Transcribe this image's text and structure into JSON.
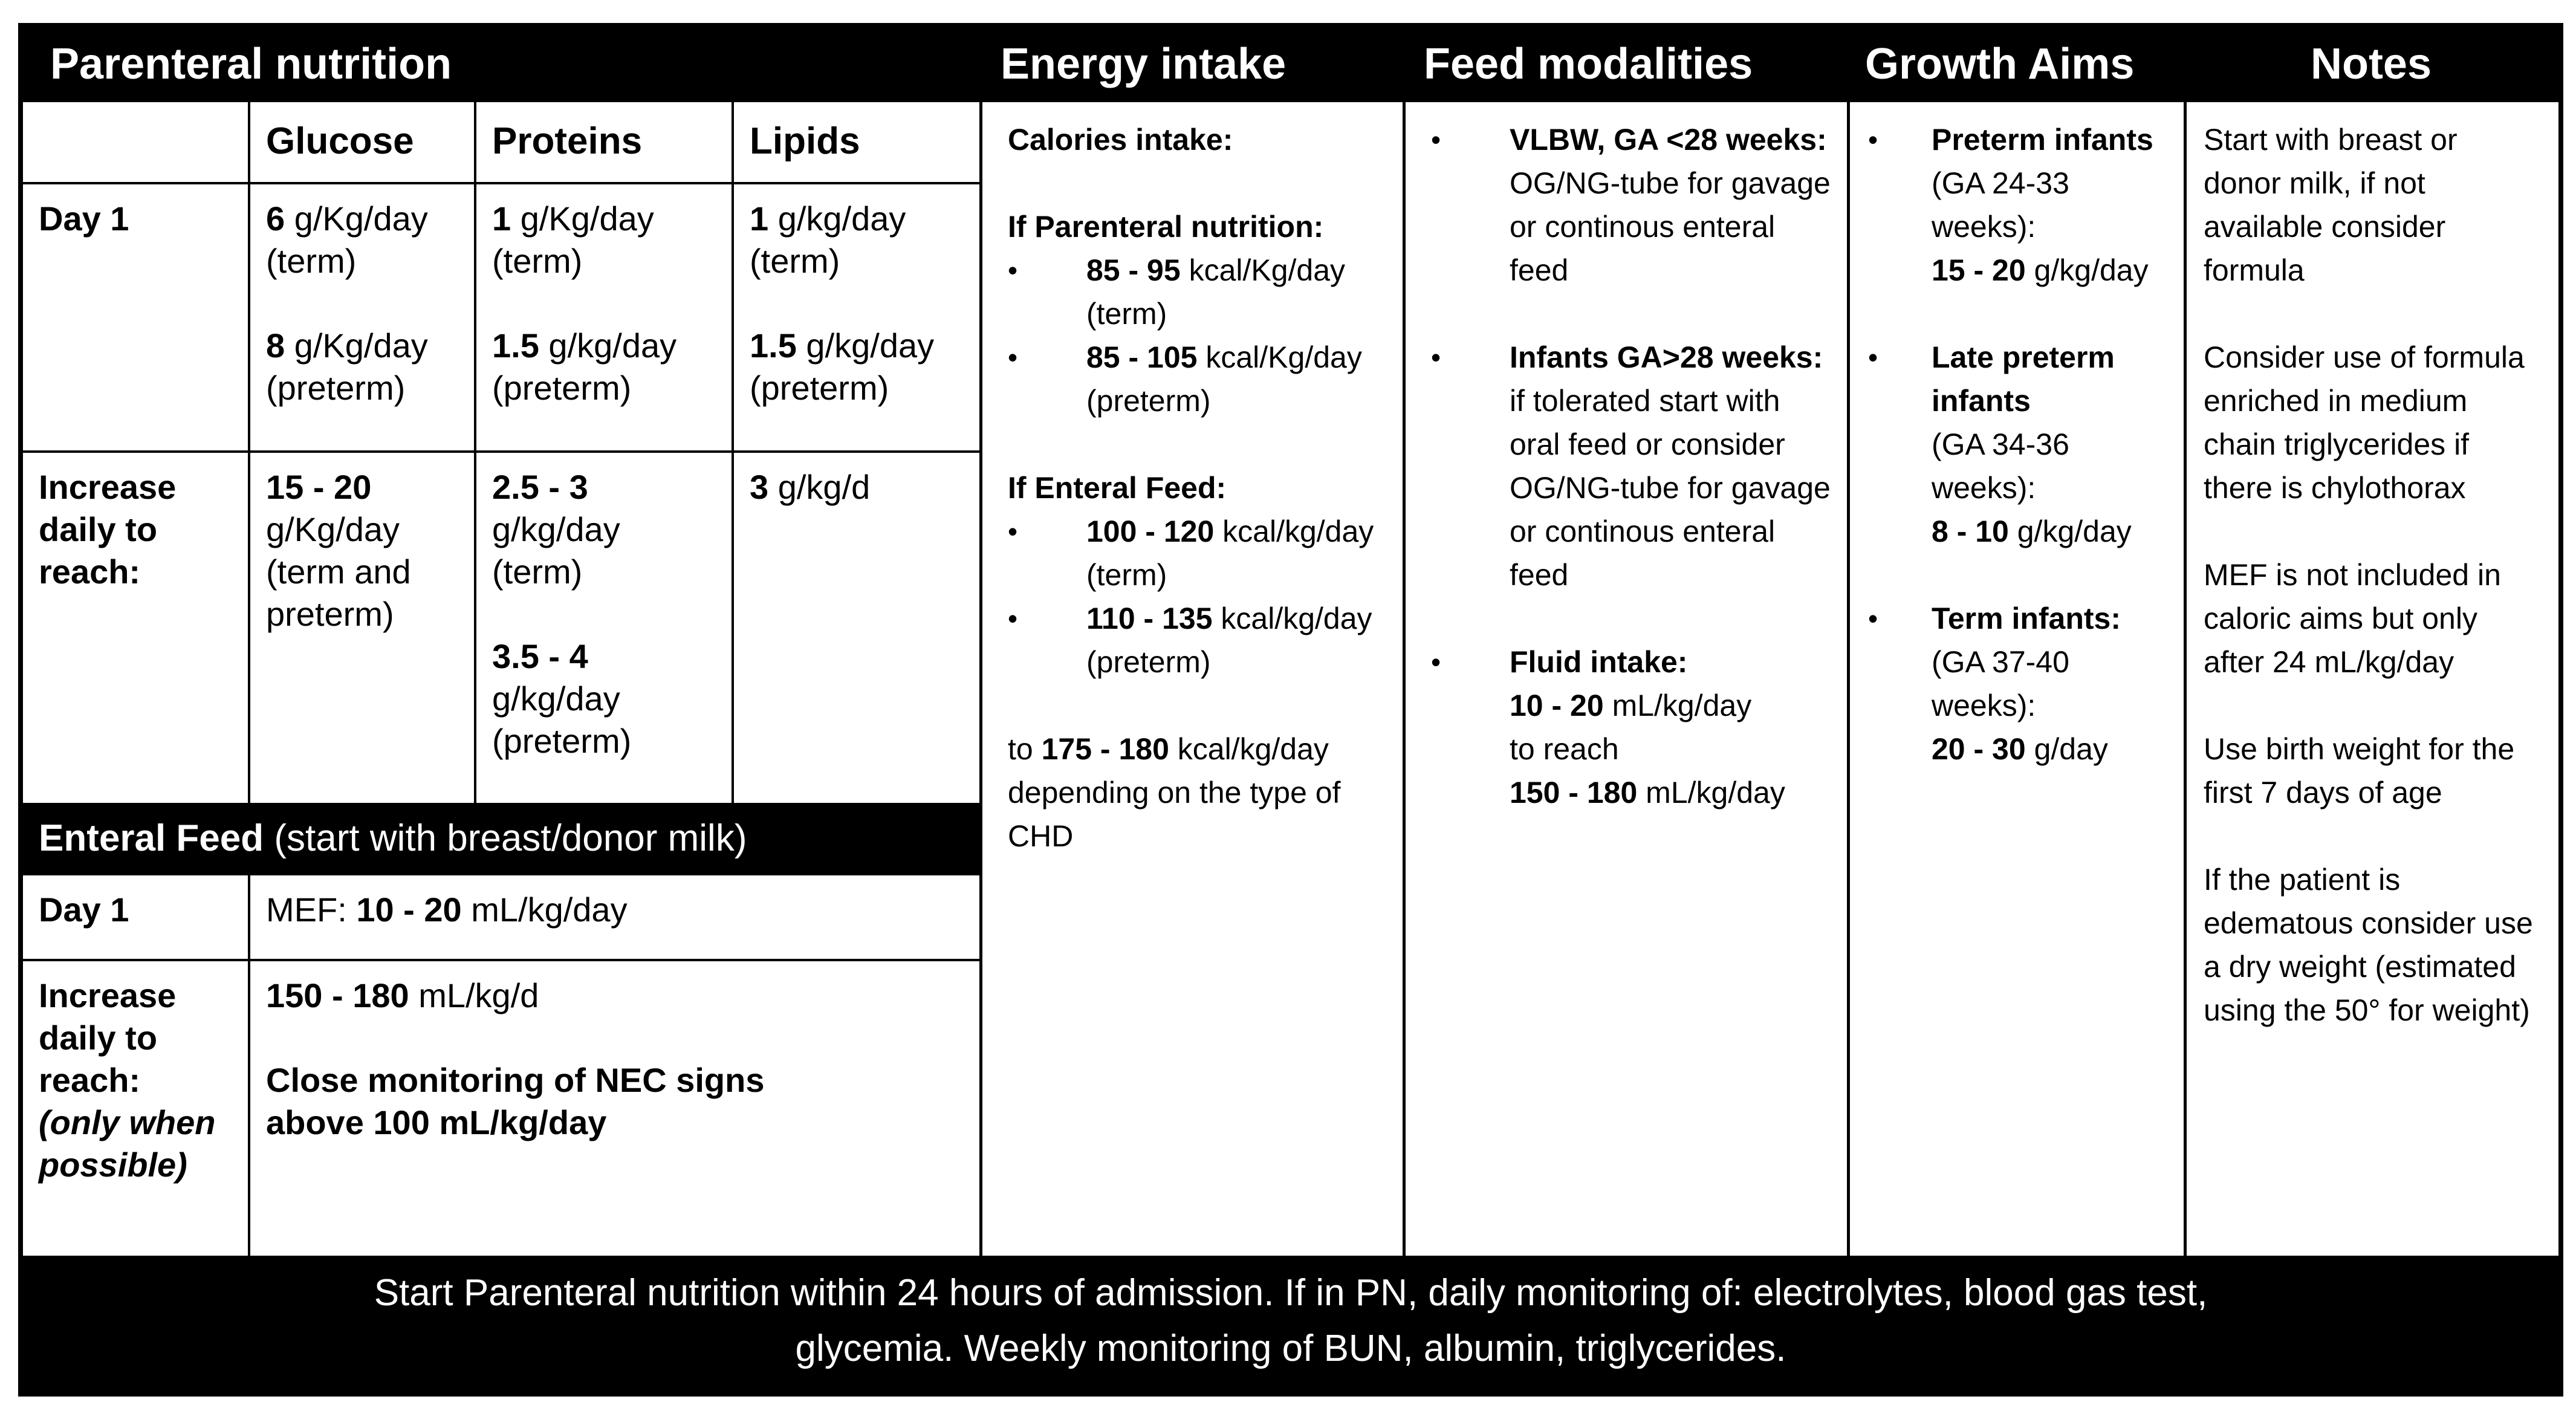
{
  "headers": {
    "parenteral": "Parenteral nutrition",
    "energy": "Energy intake",
    "feed": "Feed modalities",
    "growth": "Growth Aims",
    "notes": "Notes"
  },
  "parenteral": {
    "col_headers": [
      "Glucose",
      "Proteins",
      "Lipids"
    ],
    "rows": [
      {
        "label": "Day 1",
        "glucose": "**6** g/Kg/day\n(term)\n\n**8** g/Kg/day\n(preterm)",
        "proteins": "**1** g/Kg/day\n(term)\n\n**1.5** g/kg/day\n(preterm)",
        "lipids": "**1** g/kg/day\n(term)\n\n**1.5** g/kg/day\n(preterm)"
      },
      {
        "label": "Increase daily to reach:",
        "glucose": "**15 - 20** g/Kg/day (term and preterm)",
        "proteins": "**2.5 - 3** g/kg/day (term)\n\n**3.5 - 4** g/kg/day (preterm)",
        "lipids": "**3** g/kg/d"
      }
    ]
  },
  "enteral": {
    "banner": "**Enteral Feed** (start with breast/donor milk)",
    "rows": [
      {
        "label": "Day 1",
        "value": "MEF: **10 - 20** mL/kg/day"
      },
      {
        "label": "Increase daily to reach:\n*(only when possible)*",
        "value": "**150 - 180** mL/kg/d\n\n**Close monitoring of NEC signs\nabove 100 mL/kg/day**"
      }
    ]
  },
  "energy": {
    "blocks": [
      {
        "t": "p",
        "text": "**Calories intake:**"
      },
      {
        "t": "gap"
      },
      {
        "t": "p",
        "text": "**If Parenteral nutrition:**"
      },
      {
        "t": "li",
        "text": "**85 - 95** kcal/Kg/day\n(term)"
      },
      {
        "t": "li",
        "text": "**85 - 105** kcal/Kg/day\n(preterm)"
      },
      {
        "t": "gap"
      },
      {
        "t": "p",
        "text": "**If Enteral Feed:**"
      },
      {
        "t": "li",
        "text": "**100 - 120** kcal/kg/day\n(term)"
      },
      {
        "t": "li",
        "text": "**110 - 135** kcal/kg/day\n(preterm)"
      },
      {
        "t": "gap"
      },
      {
        "t": "p",
        "text": "to **175 - 180** kcal/kg/day depending on the type of CHD"
      }
    ]
  },
  "feed": {
    "blocks": [
      {
        "t": "li",
        "text": "**VLBW, GA <28 weeks:** OG/NG-tube for gavage or continous enteral feed"
      },
      {
        "t": "gap"
      },
      {
        "t": "li",
        "text": "**Infants GA>28 weeks:** if tolerated start with oral feed or consider OG/NG-tube for gavage or continous enteral feed"
      },
      {
        "t": "gap"
      },
      {
        "t": "li",
        "text": "**Fluid intake:**\n**10 - 20** mL/kg/day\nto reach\n**150 - 180** mL/kg/day"
      }
    ]
  },
  "growth": {
    "blocks": [
      {
        "t": "li",
        "text": "**Preterm infants**\n(GA 24-33\nweeks):\n**15 - 20** g/kg/day"
      },
      {
        "t": "gap"
      },
      {
        "t": "li",
        "text": "**Late preterm**\n**infants**\n(GA 34-36\nweeks):\n**8 - 10** g/kg/day"
      },
      {
        "t": "gap"
      },
      {
        "t": "li",
        "text": "**Term infants:**\n(GA 37-40\nweeks):\n**20 - 30** g/day"
      }
    ]
  },
  "notes": {
    "blocks": [
      {
        "t": "p",
        "text": "Start with breast or donor milk, if not available consider formula"
      },
      {
        "t": "gap"
      },
      {
        "t": "p",
        "text": "Consider use of formula enriched in medium chain triglycerides if there is chylothorax"
      },
      {
        "t": "gap"
      },
      {
        "t": "p",
        "text": "MEF is not included in caloric aims but only after 24 mL/kg/day"
      },
      {
        "t": "gap"
      },
      {
        "t": "p",
        "text": "Use birth weight for the first 7 days of age"
      },
      {
        "t": "gap"
      },
      {
        "t": "p",
        "text": "If the patient is edematous consider use a dry weight (estimated using the 50° for weight)"
      }
    ]
  },
  "footer": {
    "text": "Start Parenteral nutrition within 24 hours of admission. If in PN, daily monitoring of: electrolytes, blood gas test,\nglycemia. Weekly monitoring of BUN, albumin, triglycerides."
  }
}
